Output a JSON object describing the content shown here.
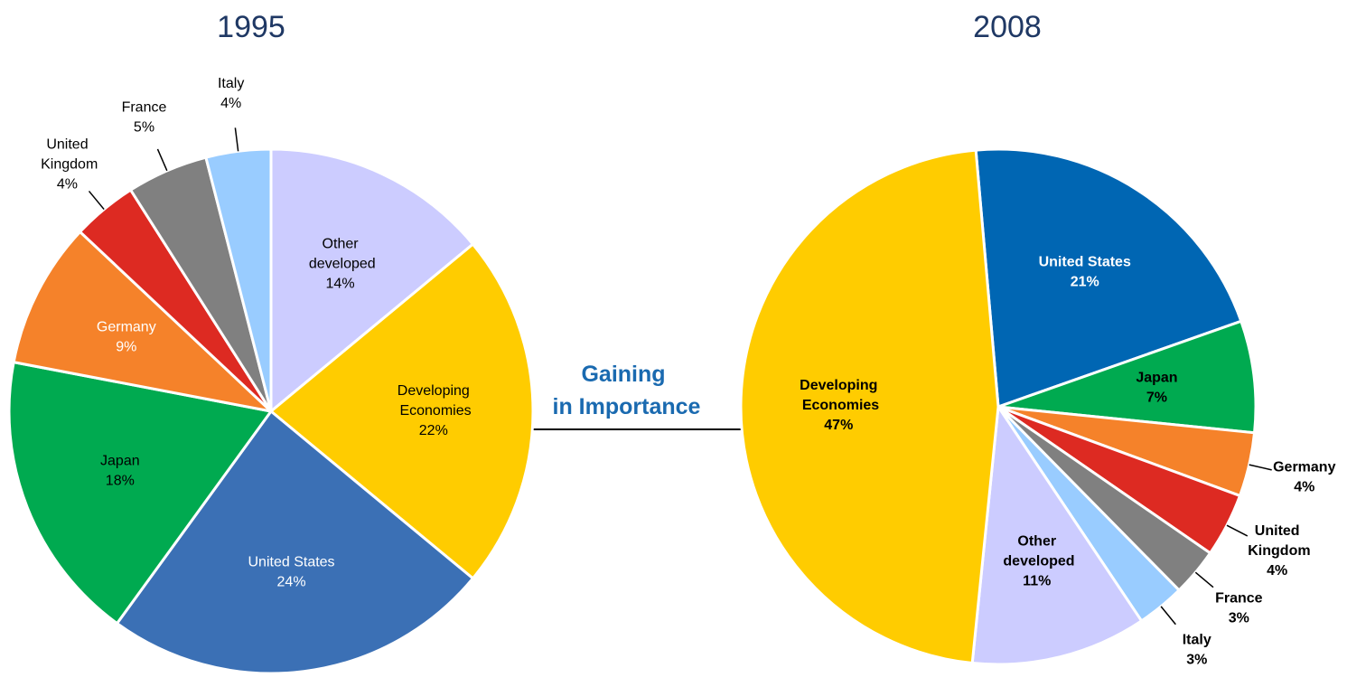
{
  "chart_data": [
    {
      "type": "pie",
      "title": "1995",
      "categories": [
        "Other developed",
        "Developing Economies",
        "United States",
        "Japan",
        "Germany",
        "United Kingdom",
        "France",
        "Italy"
      ],
      "values": [
        14,
        22,
        24,
        18,
        9,
        4,
        5,
        4
      ],
      "value_labels": [
        "14%",
        "22%",
        "24%",
        "18%",
        "9%",
        "4%",
        "5%",
        "4%"
      ],
      "colors": [
        "#ccccff",
        "#ffcc00",
        "#3b70b5",
        "#00aa50",
        "#f5822a",
        "#dd2a22",
        "#808080",
        "#99ccff"
      ]
    },
    {
      "type": "pie",
      "title": "2008",
      "categories": [
        "United States",
        "Japan",
        "Germany",
        "United Kingdom",
        "France",
        "Italy",
        "Other developed",
        "Developing Economies"
      ],
      "values": [
        21,
        7,
        4,
        4,
        3,
        3,
        11,
        47
      ],
      "value_labels": [
        "21%",
        "7%",
        "4%",
        "4%",
        "3%",
        "3%",
        "11%",
        "47%"
      ],
      "colors": [
        "#0066b3",
        "#00aa50",
        "#f5822a",
        "#dd2a22",
        "#808080",
        "#99ccff",
        "#ccccff",
        "#ffcc00"
      ]
    }
  ],
  "annotation": "Gaining in Importance"
}
